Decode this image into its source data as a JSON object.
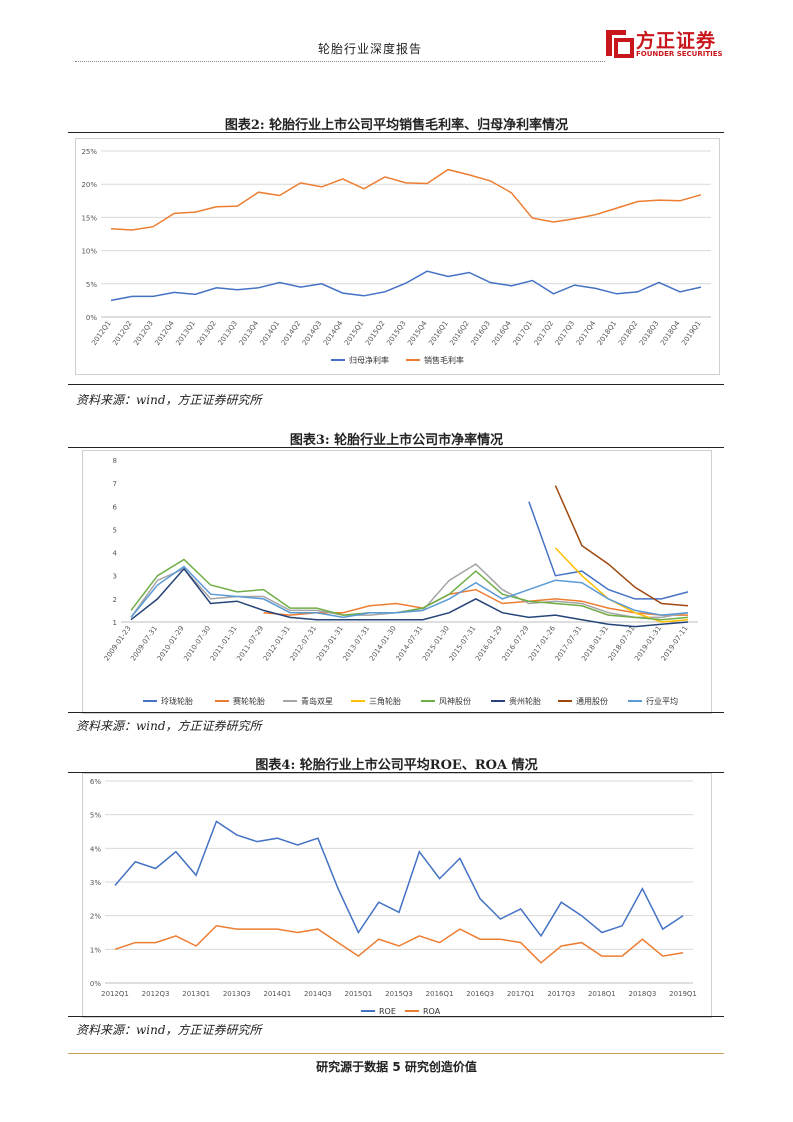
{
  "header": {
    "title": "轮胎行业深度报告",
    "logo_cn": "方正证券",
    "logo_en": "FOUNDER SECURITIES",
    "brand_color": "#c8161d"
  },
  "figure2": {
    "title": "图表2:    轮胎行业上市公司平均销售毛利率、归母净利率情况",
    "source": "资料来源：wind，方正证券研究所"
  },
  "figure3": {
    "title": "图表3:    轮胎行业上市公司市净率情况",
    "source": "资料来源：wind，方正证券研究所"
  },
  "figure4": {
    "title": "图表4:    轮胎行业上市公司平均ROE、ROA 情况",
    "source": "资料来源：wind，方正证券研究所"
  },
  "footer": {
    "text": "研究源于数据 5 研究创造价值"
  },
  "chart_data": [
    {
      "type": "line",
      "title": "轮胎行业上市公司平均销售毛利率、归母净利率情况",
      "categories": [
        "2012Q1",
        "2012Q2",
        "2012Q3",
        "2012Q4",
        "2013Q1",
        "2013Q2",
        "2013Q3",
        "2013Q4",
        "2014Q1",
        "2014Q2",
        "2014Q3",
        "2014Q4",
        "2015Q1",
        "2015Q2",
        "2015Q3",
        "2015Q4",
        "2016Q1",
        "2016Q2",
        "2016Q3",
        "2016Q4",
        "2017Q1",
        "2017Q2",
        "2017Q3",
        "2017Q4",
        "2018Q1",
        "2018Q2",
        "2018Q3",
        "2018Q4",
        "2019Q1"
      ],
      "y_ticks": [
        "0%",
        "5%",
        "10%",
        "15%",
        "20%",
        "25%"
      ],
      "ylim": [
        0,
        25
      ],
      "series": [
        {
          "name": "归母净利率",
          "color": "#4472c4",
          "values": [
            2.5,
            3.1,
            3.1,
            3.7,
            3.4,
            4.4,
            4.1,
            4.4,
            5.2,
            4.5,
            5.0,
            3.6,
            3.2,
            3.8,
            5.1,
            6.9,
            6.1,
            6.7,
            5.2,
            4.7,
            5.5,
            3.5,
            4.8,
            4.3,
            3.5,
            3.8,
            5.2,
            3.8,
            4.5
          ]
        },
        {
          "name": "销售毛利率",
          "color": "#ed7d31",
          "values": [
            13.3,
            13.1,
            13.6,
            15.6,
            15.8,
            16.6,
            16.7,
            18.8,
            18.3,
            20.2,
            19.6,
            20.8,
            19.3,
            21.1,
            20.2,
            20.1,
            22.2,
            21.4,
            20.5,
            18.7,
            14.9,
            14.3,
            14.8,
            15.4,
            16.4,
            17.4,
            17.6,
            17.5,
            18.4
          ]
        }
      ]
    },
    {
      "type": "line",
      "title": "轮胎行业上市公司市净率情况",
      "x_tick_labels": [
        "2009-01-23",
        "2009-07-31",
        "2010-01-29",
        "2010-07-30",
        "2011-01-31",
        "2011-07-29",
        "2012-01-31",
        "2012-07-31",
        "2013-01-31",
        "2013-07-31",
        "2014-01-30",
        "2014-07-31",
        "2015-01-30",
        "2015-07-31",
        "2016-01-29",
        "2016-07-29",
        "2017-01-26",
        "2017-07-31",
        "2018-01-31",
        "2018-07-31",
        "2019-01-31",
        "2019-07-11"
      ],
      "y_ticks": [
        "1",
        "2",
        "3",
        "4",
        "5",
        "6",
        "7",
        "8"
      ],
      "ylim": [
        1,
        8
      ],
      "series": [
        {
          "name": "玲珑轮胎",
          "color": "#4472c4",
          "values": [
            null,
            null,
            null,
            null,
            null,
            null,
            null,
            null,
            null,
            null,
            null,
            null,
            null,
            null,
            null,
            6.2,
            3.0,
            3.2,
            2.4,
            2.0,
            2.0,
            2.3
          ]
        },
        {
          "name": "赛轮轮胎",
          "color": "#ed7d31",
          "values": [
            null,
            null,
            null,
            null,
            null,
            1.4,
            1.3,
            1.4,
            1.4,
            1.7,
            1.8,
            1.6,
            2.2,
            2.4,
            1.8,
            1.9,
            2.0,
            1.9,
            1.6,
            1.4,
            1.3,
            1.3
          ]
        },
        {
          "name": "青岛双星",
          "color": "#a5a5a5",
          "values": [
            1.2,
            2.8,
            3.3,
            2.0,
            2.1,
            2.1,
            1.5,
            1.5,
            1.3,
            1.3,
            1.4,
            1.5,
            2.8,
            3.5,
            2.4,
            1.8,
            1.9,
            1.8,
            1.4,
            1.2,
            1.2,
            1.4
          ]
        },
        {
          "name": "三角轮胎",
          "color": "#ffc000",
          "values": [
            null,
            null,
            null,
            null,
            null,
            null,
            null,
            null,
            null,
            null,
            null,
            null,
            null,
            null,
            null,
            null,
            4.2,
            3.0,
            2.0,
            1.4,
            1.0,
            1.1
          ]
        },
        {
          "name": "风神股份",
          "color": "#70ad47",
          "values": [
            1.5,
            3.0,
            3.7,
            2.6,
            2.3,
            2.4,
            1.6,
            1.6,
            1.3,
            1.4,
            1.4,
            1.6,
            2.2,
            3.2,
            2.2,
            1.9,
            1.8,
            1.7,
            1.3,
            1.2,
            1.1,
            1.2
          ]
        },
        {
          "name": "贵州轮胎",
          "color": "#264478",
          "values": [
            1.1,
            2.0,
            3.3,
            1.8,
            1.9,
            1.5,
            1.2,
            1.1,
            1.1,
            1.1,
            1.1,
            1.1,
            1.4,
            2.0,
            1.4,
            1.2,
            1.3,
            1.1,
            0.9,
            0.8,
            0.9,
            1.0
          ]
        },
        {
          "name": "通用股份",
          "color": "#9e480e",
          "values": [
            null,
            null,
            null,
            null,
            null,
            null,
            null,
            null,
            null,
            null,
            null,
            null,
            null,
            null,
            null,
            null,
            6.9,
            4.3,
            3.5,
            2.5,
            1.8,
            1.7
          ]
        },
        {
          "name": "行业平均",
          "color": "#5b9bd5",
          "values": [
            1.2,
            2.6,
            3.4,
            2.2,
            2.1,
            2.0,
            1.4,
            1.4,
            1.2,
            1.4,
            1.4,
            1.5,
            2.0,
            2.7,
            2.0,
            2.4,
            2.8,
            2.7,
            2.0,
            1.5,
            1.3,
            1.4
          ]
        }
      ]
    },
    {
      "type": "line",
      "title": "轮胎行业上市公司平均ROE、ROA 情况",
      "categories": [
        "2012Q1",
        "2012Q2",
        "2012Q3",
        "2012Q4",
        "2013Q1",
        "2013Q2",
        "2013Q3",
        "2013Q4",
        "2014Q1",
        "2014Q2",
        "2014Q3",
        "2014Q4",
        "2015Q1",
        "2015Q2",
        "2015Q3",
        "2015Q4",
        "2016Q1",
        "2016Q2",
        "2016Q3",
        "2016Q4",
        "2017Q1",
        "2017Q2",
        "2017Q3",
        "2017Q4",
        "2018Q1",
        "2018Q2",
        "2018Q3",
        "2018Q4",
        "2019Q1"
      ],
      "x_tick_labels": [
        "2012Q1",
        "2012Q3",
        "2013Q1",
        "2013Q3",
        "2014Q1",
        "2014Q3",
        "2015Q1",
        "2015Q3",
        "2016Q1",
        "2016Q3",
        "2017Q1",
        "2017Q3",
        "2018Q1",
        "2018Q3",
        "2019Q1"
      ],
      "y_ticks": [
        "0%",
        "1%",
        "2%",
        "3%",
        "4%",
        "5%",
        "6%"
      ],
      "ylim": [
        0,
        6
      ],
      "series": [
        {
          "name": "ROE",
          "color": "#4472c4",
          "values": [
            2.9,
            3.6,
            3.4,
            3.9,
            3.2,
            4.8,
            4.4,
            4.2,
            4.3,
            4.1,
            4.3,
            2.8,
            1.5,
            2.4,
            2.1,
            3.9,
            3.1,
            3.7,
            2.5,
            1.9,
            2.2,
            1.4,
            2.4,
            2.0,
            1.5,
            1.7,
            2.8,
            1.6,
            2.0
          ]
        },
        {
          "name": "ROA",
          "color": "#ed7d31",
          "values": [
            1.0,
            1.2,
            1.2,
            1.4,
            1.1,
            1.7,
            1.6,
            1.6,
            1.6,
            1.5,
            1.6,
            1.2,
            0.8,
            1.3,
            1.1,
            1.4,
            1.2,
            1.6,
            1.3,
            1.3,
            1.2,
            0.6,
            1.1,
            1.2,
            0.8,
            0.8,
            1.3,
            0.8,
            0.9
          ]
        }
      ]
    }
  ]
}
